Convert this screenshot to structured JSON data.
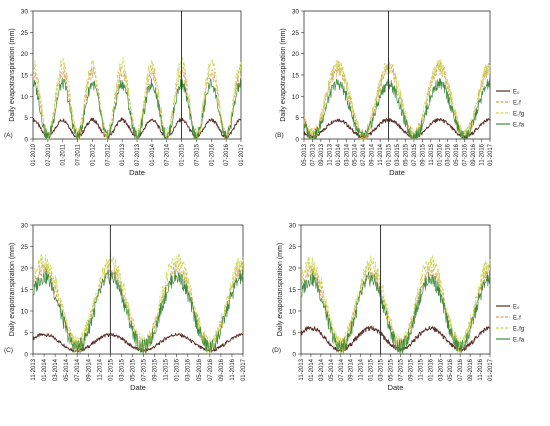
{
  "chart_data": [
    {
      "id": "A",
      "type": "line",
      "panel_letter": "(A)",
      "xlabel": "Date",
      "ylabel": "Daily evapotranspiration (mm)",
      "ylim": [
        0,
        30
      ],
      "yticks": [
        "0",
        "5",
        "10",
        "15",
        "20",
        "25",
        "30"
      ],
      "x_tick_labels": [
        "01-2010",
        "07-2010",
        "01-2011",
        "07-2011",
        "01-2012",
        "07-2012",
        "01-2013",
        "07-2013",
        "01-2014",
        "07-2014",
        "01-2015",
        "07-2015",
        "01-2016",
        "07-2016",
        "01-2017"
      ],
      "vline_tick": "01-2015",
      "legend": false,
      "series": [
        {
          "key": "e0",
          "color": "#5a2a24",
          "min": 0.5,
          "max": 4.5
        },
        {
          "key": "erf",
          "color": "#d9a25a",
          "min": 0.8,
          "max": 15.5
        },
        {
          "key": "erfg",
          "color": "#c9d64a",
          "min": 0.8,
          "max": 17.5
        },
        {
          "key": "erfa",
          "color": "#3d8a3d",
          "min": 0.6,
          "max": 13.0
        }
      ]
    },
    {
      "id": "B",
      "type": "line",
      "panel_letter": "(B)",
      "xlabel": "Date",
      "ylabel": "Daily evapotranspiration (mm)",
      "ylim": [
        0,
        30
      ],
      "yticks": [
        "0",
        "5",
        "10",
        "15",
        "20",
        "25",
        "30"
      ],
      "x_tick_labels": [
        "05-2013",
        "07-2013",
        "09-2013",
        "11-2013",
        "01-2014",
        "03-2014",
        "05-2014",
        "07-2014",
        "09-2014",
        "11-2014",
        "01-2015",
        "03-2015",
        "05-2015",
        "07-2015",
        "09-2015",
        "11-2015",
        "01-2016",
        "03-2016",
        "05-2016",
        "07-2016",
        "09-2016",
        "11-2016",
        "01-2017"
      ],
      "vline_tick": "01-2015",
      "legend": true,
      "legend_position": "right",
      "series": [
        {
          "key": "e0",
          "name": "E₀",
          "color": "#5a2a24",
          "min": 0.5,
          "max": 4.5
        },
        {
          "key": "erf",
          "name": "E꜀f",
          "color": "#d9a25a",
          "min": 0.8,
          "max": 16.5
        },
        {
          "key": "erfg",
          "name": "E꜀fg",
          "color": "#c9d64a",
          "min": 0.8,
          "max": 17.0
        },
        {
          "key": "erfa",
          "name": "E꜀fa",
          "color": "#3d8a3d",
          "min": 0.6,
          "max": 13.0
        }
      ]
    },
    {
      "id": "C",
      "type": "line",
      "panel_letter": "(C)",
      "xlabel": "Date",
      "ylabel": "Daily evapotranspiration (mm)",
      "ylim": [
        0,
        30
      ],
      "yticks": [
        "0",
        "5",
        "10",
        "15",
        "20",
        "25",
        "30"
      ],
      "x_tick_labels": [
        "11-2013",
        "01-2014",
        "03-2014",
        "05-2014",
        "07-2014",
        "09-2014",
        "11-2014",
        "01-2015",
        "03-2015",
        "05-2015",
        "07-2015",
        "09-2015",
        "11-2015",
        "01-2016",
        "03-2016",
        "05-2016",
        "07-2016",
        "09-2016",
        "11-2016",
        "01-2017"
      ],
      "vline_tick": "01-2015",
      "legend": false,
      "series": [
        {
          "key": "e0",
          "color": "#5a2a24",
          "min": 0.8,
          "max": 4.5
        },
        {
          "key": "erf",
          "color": "#d9a25a",
          "min": 2.0,
          "max": 19.5
        },
        {
          "key": "erfg",
          "color": "#c9d64a",
          "min": 2.0,
          "max": 21.5
        },
        {
          "key": "erfa",
          "color": "#3d8a3d",
          "min": 1.5,
          "max": 18.0
        }
      ]
    },
    {
      "id": "D",
      "type": "line",
      "panel_letter": "(D)",
      "xlabel": "Date",
      "ylabel": "Daily evapotranspiration (mm)",
      "ylim": [
        0,
        30
      ],
      "yticks": [
        "0",
        "5",
        "10",
        "15",
        "20",
        "25",
        "30"
      ],
      "x_tick_labels": [
        "11-2013",
        "01-2014",
        "03-2014",
        "05-2014",
        "07-2014",
        "09-2014",
        "11-2014",
        "01-2015",
        "03-2015",
        "05-2015",
        "07-2015",
        "09-2015",
        "11-2015",
        "01-2016",
        "03-2016",
        "05-2016",
        "07-2016",
        "09-2016",
        "11-2016",
        "01-2017"
      ],
      "vline_tick": "03-2015",
      "legend": true,
      "legend_position": "right",
      "series": [
        {
          "key": "e0",
          "name": "E₀",
          "color": "#5a2a24",
          "min": 1.0,
          "max": 6.0
        },
        {
          "key": "erf",
          "name": "E꜀f",
          "color": "#d9a25a",
          "min": 2.0,
          "max": 19.0
        },
        {
          "key": "erfg",
          "name": "E꜀fg",
          "color": "#c9d64a",
          "min": 2.0,
          "max": 21.0
        },
        {
          "key": "erfa",
          "name": "E꜀fa",
          "color": "#3d8a3d",
          "min": 1.5,
          "max": 17.5
        }
      ]
    }
  ]
}
